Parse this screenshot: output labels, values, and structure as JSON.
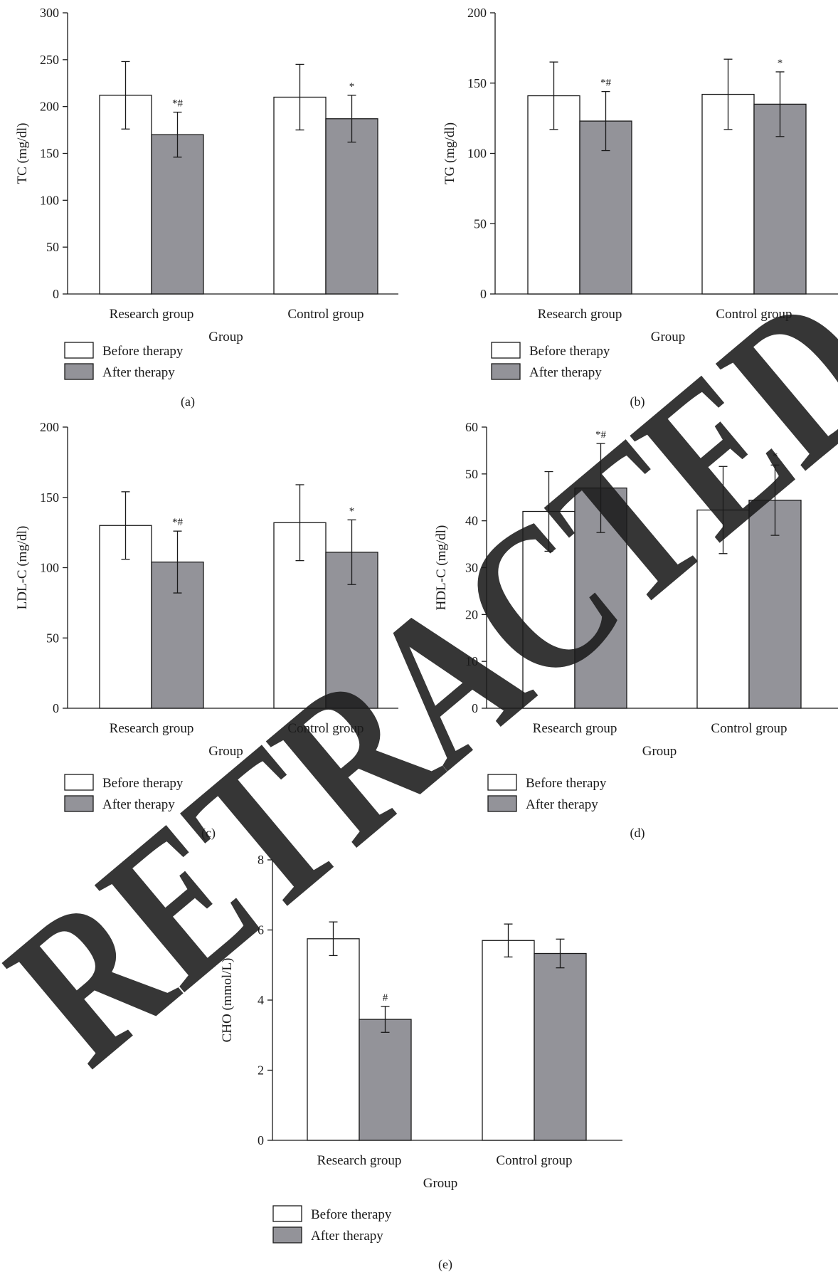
{
  "watermark": "RETRACTED",
  "colors": {
    "before": "#ffffff",
    "after": "#939399",
    "watermark": "#bdbdbd"
  },
  "chart_data": [
    {
      "panel": "(a)",
      "type": "bar",
      "categories": [
        "Research group",
        "Control group"
      ],
      "series": [
        {
          "name": "Before therapy",
          "values": [
            212,
            210
          ],
          "errors": [
            36,
            35
          ],
          "annotations": [
            "",
            ""
          ]
        },
        {
          "name": "After therapy",
          "values": [
            170,
            187
          ],
          "errors": [
            24,
            25
          ],
          "annotations": [
            "*#",
            "*"
          ]
        }
      ],
      "xlabel": "Group",
      "ylabel": "TC (mg/dl)",
      "ylim": [
        0,
        300
      ],
      "yticks": [
        0,
        50,
        100,
        150,
        200,
        250,
        300
      ],
      "legend": "bottom-left"
    },
    {
      "panel": "(b)",
      "type": "bar",
      "categories": [
        "Research group",
        "Control group"
      ],
      "series": [
        {
          "name": "Before therapy",
          "values": [
            141,
            142
          ],
          "errors": [
            24,
            25
          ],
          "annotations": [
            "",
            ""
          ]
        },
        {
          "name": "After therapy",
          "values": [
            123,
            135
          ],
          "errors": [
            21,
            23
          ],
          "annotations": [
            "*#",
            "*"
          ]
        }
      ],
      "xlabel": "Group",
      "ylabel": "TG (mg/dl)",
      "ylim": [
        0,
        200
      ],
      "yticks": [
        0,
        50,
        100,
        150,
        200
      ],
      "legend": "bottom-left"
    },
    {
      "panel": "(c)",
      "type": "bar",
      "categories": [
        "Research group",
        "Control group"
      ],
      "series": [
        {
          "name": "Before therapy",
          "values": [
            130,
            132
          ],
          "errors": [
            24,
            27
          ],
          "annotations": [
            "",
            ""
          ]
        },
        {
          "name": "After therapy",
          "values": [
            104,
            111
          ],
          "errors": [
            22,
            23
          ],
          "annotations": [
            "*#",
            "*"
          ]
        }
      ],
      "xlabel": "Group",
      "ylabel": "LDL-C (mg/dl)",
      "ylim": [
        0,
        200
      ],
      "yticks": [
        0,
        50,
        100,
        150,
        200
      ],
      "legend": "bottom-left"
    },
    {
      "panel": "(d)",
      "type": "bar",
      "categories": [
        "Research group",
        "Control group"
      ],
      "series": [
        {
          "name": "Before therapy",
          "values": [
            42,
            42.3
          ],
          "errors": [
            8.5,
            9.3
          ],
          "annotations": [
            "",
            ""
          ]
        },
        {
          "name": "After therapy",
          "values": [
            47,
            44.4
          ],
          "errors": [
            9.5,
            7.5
          ],
          "annotations": [
            "*#",
            "*"
          ]
        }
      ],
      "xlabel": "Group",
      "ylabel": "HDL-C (mg/dl)",
      "ylim": [
        0,
        60
      ],
      "yticks": [
        0,
        10,
        20,
        30,
        40,
        50,
        60
      ],
      "legend": "bottom-left"
    },
    {
      "panel": "(e)",
      "type": "bar",
      "categories": [
        "Research group",
        "Control group"
      ],
      "series": [
        {
          "name": "Before therapy",
          "values": [
            5.75,
            5.7
          ],
          "errors": [
            0.48,
            0.47
          ],
          "annotations": [
            "",
            ""
          ]
        },
        {
          "name": "After therapy",
          "values": [
            3.45,
            5.33
          ],
          "errors": [
            0.37,
            0.41
          ],
          "annotations": [
            "#",
            ""
          ]
        }
      ],
      "xlabel": "Group",
      "ylabel": "CHO (mmol/L)",
      "ylim": [
        0,
        8
      ],
      "yticks": [
        0,
        2,
        4,
        6,
        8
      ],
      "legend": "bottom-left"
    }
  ]
}
